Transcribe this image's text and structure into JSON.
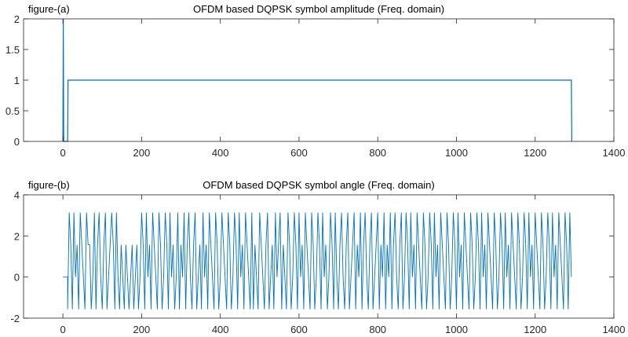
{
  "chart_data": [
    {
      "type": "line",
      "corner_label": "figure-(a)",
      "title": "OFDM based DQPSK symbol amplitude (Freq. domain)",
      "xlim": [
        -100,
        1400
      ],
      "ylim": [
        0,
        2
      ],
      "xticks": [
        0,
        200,
        400,
        600,
        800,
        1000,
        1200,
        1400
      ],
      "yticks": [
        0,
        0.5,
        1,
        1.5,
        2
      ],
      "ytick_labels": [
        "0",
        "0.5",
        "1",
        "1.5",
        "2"
      ],
      "grid": false,
      "color": "#0072BD",
      "x": [
        0,
        1,
        2,
        12,
        13,
        1292,
        1293
      ],
      "y": [
        0,
        2,
        0,
        0,
        1,
        1,
        0
      ]
    },
    {
      "type": "line",
      "corner_label": "figure-(b)",
      "title": "OFDM based DQPSK symbol angle (Freq. domain)",
      "xlim": [
        -100,
        1400
      ],
      "ylim": [
        -2,
        4
      ],
      "xticks": [
        0,
        200,
        400,
        600,
        800,
        1000,
        1200,
        1400
      ],
      "yticks": [
        -2,
        0,
        2,
        4
      ],
      "ytick_labels": [
        "-2",
        "0",
        "2",
        "4"
      ],
      "grid": false,
      "color": "#0072BD",
      "prefix_x": [
        0,
        12
      ],
      "prefix_y": [
        0,
        0
      ],
      "x_start": 12,
      "x_step": 4,
      "y": [
        -1.57,
        3.14,
        1.57,
        -1.57,
        3.14,
        0,
        1.57,
        -1.57,
        3.14,
        1.57,
        0,
        -1.57,
        3.14,
        1.57,
        1.57,
        -1.57,
        0,
        3.14,
        -1.57,
        1.57,
        3.14,
        0,
        -1.57,
        1.57,
        3.14,
        -1.57,
        0,
        1.57,
        3.14,
        1.57,
        -1.57,
        3.14,
        0,
        -1.57,
        1.57,
        0,
        -1.57,
        1.57,
        0,
        -1.57,
        0,
        1.57,
        -1.57,
        0,
        1.57,
        -1.57,
        0,
        3.14,
        1.57,
        -1.57,
        3.14,
        0,
        1.57,
        -1.57,
        3.14,
        1.57,
        0,
        -1.57,
        3.14,
        1.57,
        -1.57,
        0,
        3.14,
        1.57,
        -1.57,
        3.14,
        0,
        1.57,
        -1.57,
        0,
        3.14,
        -1.57,
        1.57,
        0,
        3.14,
        -1.57,
        1.57,
        3.14,
        0,
        -1.57,
        1.57,
        3.14,
        -1.57,
        0,
        1.57,
        -1.57,
        3.14,
        0,
        1.57,
        -1.57,
        3.14,
        1.57,
        0,
        -1.57,
        3.14,
        1.57,
        -1.57,
        0,
        3.14,
        1.57,
        0,
        -1.57,
        3.14,
        1.57,
        -1.57,
        0,
        3.14,
        1.57,
        -1.57,
        3.14,
        0,
        1.57,
        -1.57,
        3.14,
        1.57,
        0,
        -1.57,
        3.14,
        -1.57,
        1.57,
        0,
        -1.57,
        3.14,
        1.57,
        0,
        -1.57,
        1.57,
        3.14,
        -1.57,
        0,
        1.57,
        -1.57,
        3.14,
        0,
        1.57,
        3.14,
        -1.57,
        1.57,
        0,
        -1.57,
        3.14,
        1.57,
        -1.57,
        0,
        3.14,
        1.57,
        -1.57,
        3.14,
        0,
        1.57,
        -1.57,
        3.14,
        1.57,
        0,
        -1.57,
        3.14,
        1.57,
        -1.57,
        0,
        3.14,
        1.57,
        -1.57,
        3.14,
        0,
        1.57,
        -1.57,
        0,
        3.14,
        1.57,
        -1.57,
        3.14,
        0,
        -1.57,
        1.57,
        3.14,
        0,
        -1.57,
        1.57,
        3.14,
        -1.57,
        0,
        1.57,
        3.14,
        -1.57,
        1.57,
        0,
        3.14,
        -1.57,
        1.57,
        3.14,
        0,
        -1.57,
        1.57,
        3.14,
        -1.57,
        0,
        1.57,
        3.14,
        -1.57,
        1.57,
        0,
        3.14,
        -1.57,
        1.57,
        0,
        3.14,
        -1.57,
        1.57,
        3.14,
        0,
        -1.57,
        1.57,
        3.14,
        -1.57,
        0,
        3.14,
        1.57,
        -1.57,
        3.14,
        0,
        1.57,
        -1.57,
        3.14,
        1.57,
        0,
        -1.57,
        3.14,
        1.57,
        -1.57,
        0,
        3.14,
        1.57,
        -1.57,
        3.14,
        0,
        1.57,
        -1.57,
        3.14,
        1.57,
        0,
        -1.57,
        3.14,
        1.57,
        -1.57,
        0,
        3.14,
        1.57,
        -1.57,
        3.14,
        0,
        1.57,
        -1.57,
        3.14,
        1.57,
        0,
        -1.57,
        3.14,
        1.57,
        -1.57,
        0,
        3.14,
        1.57,
        -1.57,
        3.14,
        0,
        1.57,
        -1.57,
        3.14,
        1.57,
        0,
        -1.57,
        3.14,
        1.57,
        -1.57,
        0,
        3.14,
        1.57,
        -1.57,
        3.14,
        0,
        1.57,
        -1.57,
        3.14,
        1.57,
        0,
        -1.57,
        3.14,
        1.57,
        -1.57,
        0,
        3.14,
        1.57,
        -1.57,
        3.14,
        0,
        1.57,
        -1.57,
        3.14,
        1.57,
        0,
        -1.57,
        3.14,
        1.57,
        -1.57,
        0,
        3.14,
        1.57,
        -1.57,
        3.14,
        0,
        1.57,
        -1.57,
        3.14,
        1.57,
        0,
        -1.57,
        3.14,
        1.57,
        -1.57,
        3.14,
        0
      ]
    }
  ]
}
